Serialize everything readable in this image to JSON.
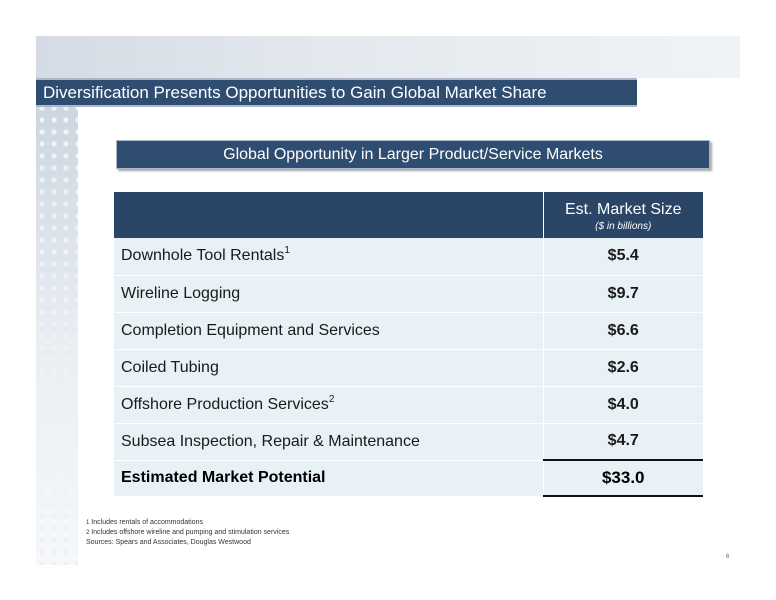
{
  "slide": {
    "title": "Diversification Presents Opportunities to Gain Global Market Share",
    "subtitle": "Global Opportunity in Larger Product/Service Markets",
    "page_number": "6"
  },
  "table": {
    "header": {
      "label": "",
      "value_title": "Est. Market Size",
      "value_unit": "($ in billions)"
    },
    "rows": [
      {
        "name": "Downhole Tool Rentals",
        "sup": "1",
        "value": "$5.4"
      },
      {
        "name": "Wireline Logging",
        "sup": "",
        "value": "$9.7"
      },
      {
        "name": "Completion Equipment and Services",
        "sup": "",
        "value": "$6.6"
      },
      {
        "name": "Coiled Tubing",
        "sup": "",
        "value": "$2.6"
      },
      {
        "name": "Offshore Production Services",
        "sup": "2",
        "value": "$4.0"
      },
      {
        "name": "Subsea Inspection, Repair & Maintenance",
        "sup": "",
        "value": "$4.7"
      }
    ],
    "total": {
      "name": "Estimated Market Potential",
      "value": "$33.0"
    }
  },
  "footnotes": [
    {
      "mark": "1",
      "text": "Includes  rentals of accommodations"
    },
    {
      "mark": "2",
      "text": "Includes offshore wireline and pumping and stimulation services"
    },
    {
      "mark": "",
      "text": "Sources: Spears and Associates, Douglas Westwood"
    }
  ],
  "colors": {
    "title_bar": "#2f4d70",
    "header_fill": "#2a4565",
    "row_fill": "#e8f1f5"
  }
}
